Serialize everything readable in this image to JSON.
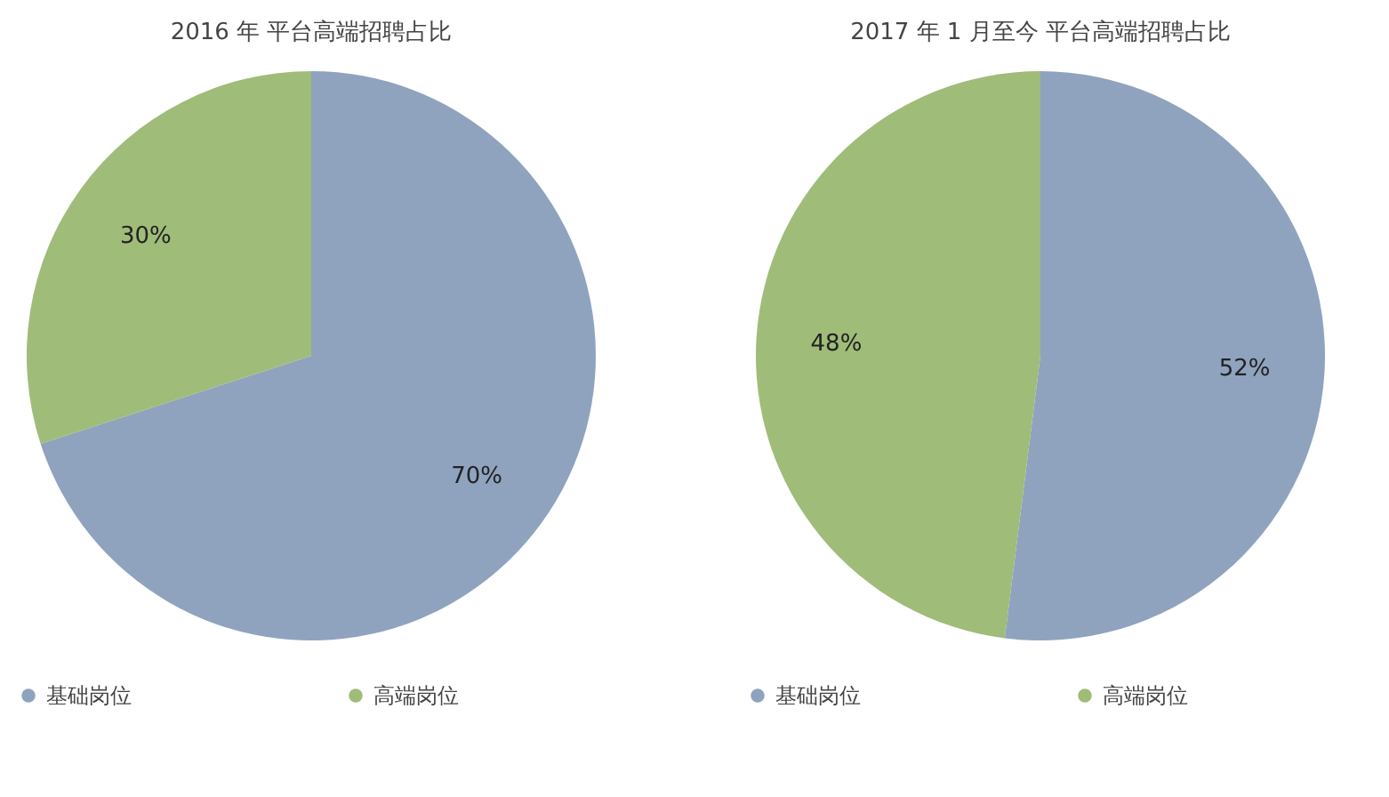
{
  "chart_data": [
    {
      "type": "pie",
      "title": "2016 年 平台高端招聘占比",
      "categories": [
        "基础岗位",
        "高端岗位"
      ],
      "values": [
        70,
        30
      ],
      "colors": [
        "#8fa3bf",
        "#9fbc79"
      ],
      "value_labels": [
        "70%",
        "30%"
      ],
      "legend": "bottom"
    },
    {
      "type": "pie",
      "title": "2017 年 1 月至今 平台高端招聘占比",
      "categories": [
        "基础岗位",
        "高端岗位"
      ],
      "values": [
        52,
        48
      ],
      "colors": [
        "#8fa3bf",
        "#9fbc79"
      ],
      "value_labels": [
        "52%",
        "48%"
      ],
      "legend": "bottom"
    }
  ]
}
